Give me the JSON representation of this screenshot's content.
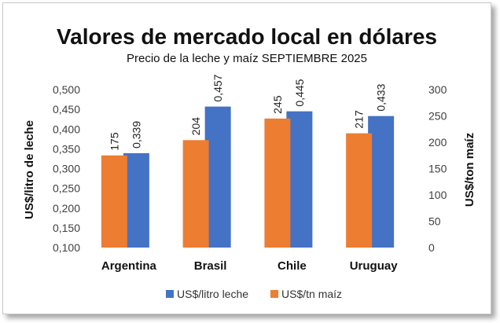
{
  "chart_data": {
    "type": "bar",
    "title": "Valores de mercado local en dólares",
    "subtitle": "Precio de la leche y maíz SEPTIEMBRE 2025",
    "categories": [
      "Argentina",
      "Brasil",
      "Chile",
      "Uruguay"
    ],
    "series": [
      {
        "name": "US$/litro leche",
        "values": [
          0.339,
          0.457,
          0.445,
          0.433
        ],
        "labels": [
          "0,339",
          "0,457",
          "0,445",
          "0,433"
        ],
        "axis": "left",
        "color": "#4472C4"
      },
      {
        "name": "US$/tn maíz",
        "values": [
          175,
          204,
          245,
          217
        ],
        "labels": [
          "175",
          "204",
          "245",
          "217"
        ],
        "axis": "right",
        "color": "#ED7D31"
      }
    ],
    "ylabel": "US$/litro de leche",
    "y2label": "US$/ton maíz",
    "ylim": [
      0.1,
      0.5
    ],
    "y2lim": [
      0,
      300
    ],
    "yticks": [
      "0,100",
      "0,150",
      "0,200",
      "0,250",
      "0,300",
      "0,350",
      "0,400",
      "0,450",
      "0,500"
    ],
    "y2ticks": [
      "0",
      "50",
      "100",
      "150",
      "200",
      "250",
      "300"
    ],
    "grid": false,
    "legend": "bottom"
  }
}
